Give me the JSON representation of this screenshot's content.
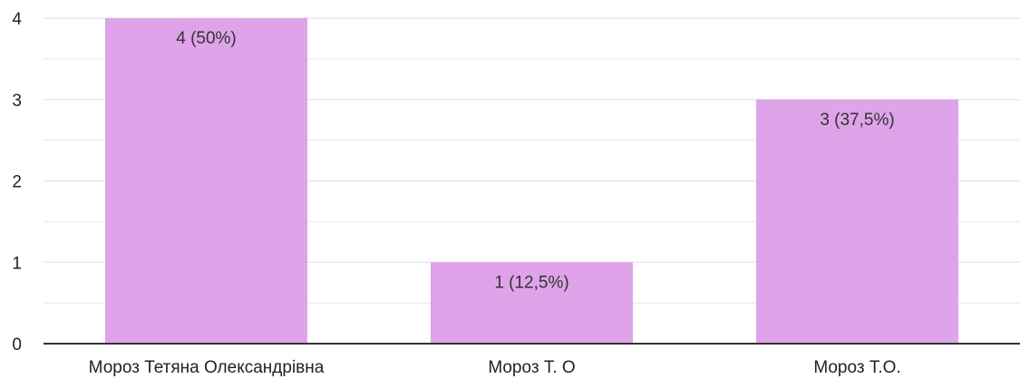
{
  "chart_data": {
    "type": "bar",
    "categories": [
      "Мороз Тетяна Олександрівна",
      "Мороз Т. О",
      "Мороз Т.О."
    ],
    "values": [
      4,
      1,
      3
    ],
    "data_labels": [
      "4 (50%)",
      "1 (12,5%)",
      "3 (37,5%)"
    ],
    "y_ticks": [
      "0",
      "1",
      "2",
      "3",
      "4"
    ],
    "ylim": [
      0,
      4
    ],
    "grid": true,
    "bar_color": "#dfa3ea",
    "grid_color": "#e8e8e8",
    "axis_color": "#333333"
  }
}
